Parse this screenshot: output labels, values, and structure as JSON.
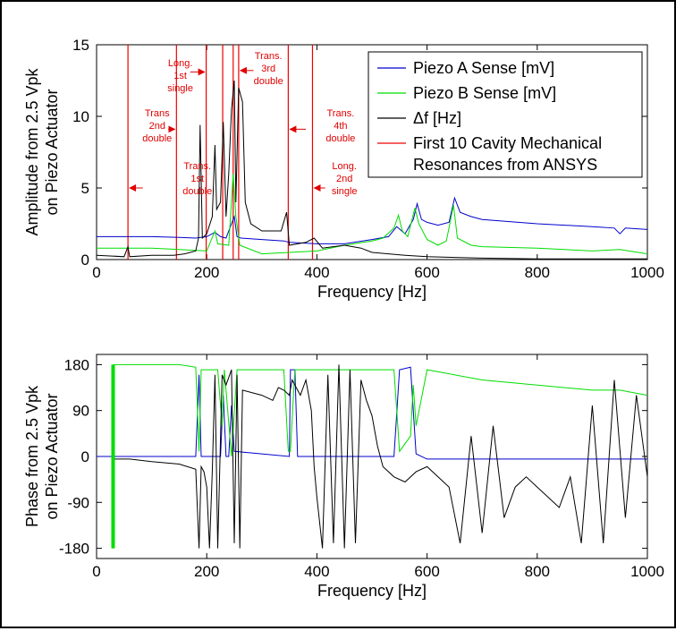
{
  "chart_data": [
    {
      "type": "line",
      "xlabel": "Frequency [Hz]",
      "ylabel_lines": [
        "Amplitude from 2.5 Vpk",
        "on Piezo Actuator"
      ],
      "xlim": [
        0,
        1000
      ],
      "ylim": [
        0,
        15
      ],
      "x_ticks": [
        "0",
        "200",
        "400",
        "600",
        "800",
        "1000"
      ],
      "y_ticks": [
        "0",
        "5",
        "10",
        "15"
      ],
      "grid": false,
      "legend_position": "top-right",
      "colors": {
        "piezo_a": "#0000cc",
        "piezo_b": "#00dd00",
        "delta_f": "#000000",
        "ansys": "#ee0000"
      },
      "legend": {
        "piezo_a": "Piezo A Sense [mV]",
        "piezo_b": "Piezo B Sense [mV]",
        "delta_f": "Δf [Hz]",
        "ansys_line1": "First 10 Cavity Mechanical",
        "ansys_line2": "Resonances from ANSYS"
      },
      "resonance_lines_hz": [
        57,
        145,
        199,
        229,
        248,
        258,
        348,
        392
      ],
      "annotations": [
        {
          "lines": [
            "Long.",
            "1st",
            "single"
          ],
          "x": 152,
          "y": 13.5,
          "arrow": "right",
          "arrow_from": 170,
          "arrow_to": 199,
          "arrow_y": 13.1
        },
        {
          "lines": [
            "Trans",
            "2nd",
            "double"
          ],
          "x": 110,
          "y": 10.0,
          "arrow": "right",
          "arrow_from": 130,
          "arrow_to": 145,
          "arrow_y": 9.1
        },
        {
          "lines": [
            "Trans.",
            "1st",
            "double"
          ],
          "x": 183,
          "y": 6.3,
          "arrow": "left",
          "arrow_from": 84,
          "arrow_to": 57,
          "arrow_y": 5.0
        },
        {
          "lines": [
            "Trans.",
            "3rd",
            "double"
          ],
          "x": 312,
          "y": 14.0,
          "arrow": "left",
          "arrow_from": 285,
          "arrow_to": 258,
          "arrow_y": 13.2
        },
        {
          "lines": [
            "Trans.",
            "4th",
            "double"
          ],
          "x": 443,
          "y": 10.0,
          "arrow": "left",
          "arrow_from": 380,
          "arrow_to": 348,
          "arrow_y": 9.1
        },
        {
          "lines": [
            "Long.",
            "2nd",
            "single"
          ],
          "x": 450,
          "y": 6.3,
          "arrow": "left",
          "arrow_from": 415,
          "arrow_to": 392,
          "arrow_y": 5.0
        }
      ],
      "series": [
        {
          "key": "piezo_a",
          "name": "Piezo A Sense [mV]",
          "color": "#0000cc",
          "points": [
            [
              0,
              1.6
            ],
            [
              50,
              1.6
            ],
            [
              100,
              1.6
            ],
            [
              150,
              1.55
            ],
            [
              180,
              1.5
            ],
            [
              200,
              1.6
            ],
            [
              215,
              1.9
            ],
            [
              225,
              1.6
            ],
            [
              235,
              1.5
            ],
            [
              245,
              2.5
            ],
            [
              250,
              3.0
            ],
            [
              255,
              1.6
            ],
            [
              262,
              1.5
            ],
            [
              300,
              1.4
            ],
            [
              340,
              1.3
            ],
            [
              350,
              1.2
            ],
            [
              400,
              1.1
            ],
            [
              450,
              1.1
            ],
            [
              500,
              1.4
            ],
            [
              530,
              1.6
            ],
            [
              545,
              2.3
            ],
            [
              560,
              1.8
            ],
            [
              575,
              2.8
            ],
            [
              582,
              3.9
            ],
            [
              590,
              2.8
            ],
            [
              600,
              2.6
            ],
            [
              620,
              2.4
            ],
            [
              640,
              2.6
            ],
            [
              650,
              4.3
            ],
            [
              660,
              3.3
            ],
            [
              680,
              3.0
            ],
            [
              700,
              2.8
            ],
            [
              800,
              2.5
            ],
            [
              900,
              2.3
            ],
            [
              940,
              2.2
            ],
            [
              950,
              1.8
            ],
            [
              960,
              2.2
            ],
            [
              1000,
              2.1
            ]
          ]
        },
        {
          "key": "piezo_b",
          "name": "Piezo B Sense [mV]",
          "color": "#00dd00",
          "points": [
            [
              0,
              0.8
            ],
            [
              50,
              0.8
            ],
            [
              100,
              0.8
            ],
            [
              150,
              0.7
            ],
            [
              200,
              0.6
            ],
            [
              215,
              2.0
            ],
            [
              220,
              1.1
            ],
            [
              240,
              1.0
            ],
            [
              248,
              6.0
            ],
            [
              253,
              3.0
            ],
            [
              260,
              1.0
            ],
            [
              300,
              0.4
            ],
            [
              350,
              0.5
            ],
            [
              400,
              0.6
            ],
            [
              450,
              1.0
            ],
            [
              500,
              1.3
            ],
            [
              520,
              1.5
            ],
            [
              540,
              2.2
            ],
            [
              548,
              3.1
            ],
            [
              555,
              2.0
            ],
            [
              565,
              1.6
            ],
            [
              578,
              3.6
            ],
            [
              585,
              2.5
            ],
            [
              600,
              1.4
            ],
            [
              620,
              1.0
            ],
            [
              635,
              1.3
            ],
            [
              648,
              3.8
            ],
            [
              655,
              1.5
            ],
            [
              680,
              1.0
            ],
            [
              700,
              0.9
            ],
            [
              800,
              0.8
            ],
            [
              900,
              0.6
            ],
            [
              950,
              0.7
            ],
            [
              1000,
              0.4
            ]
          ]
        },
        {
          "key": "delta_f",
          "name": "Δf [Hz]",
          "color": "#000000",
          "points": [
            [
              0,
              0.3
            ],
            [
              50,
              0.2
            ],
            [
              57,
              0.9
            ],
            [
              60,
              0.2
            ],
            [
              100,
              0.3
            ],
            [
              140,
              0.3
            ],
            [
              160,
              0.4
            ],
            [
              180,
              0.6
            ],
            [
              185,
              1.5
            ],
            [
              188,
              9.4
            ],
            [
              192,
              1.5
            ],
            [
              200,
              1.8
            ],
            [
              210,
              3.0
            ],
            [
              215,
              8.0
            ],
            [
              218,
              3.5
            ],
            [
              225,
              4.0
            ],
            [
              230,
              9.6
            ],
            [
              235,
              3.0
            ],
            [
              240,
              6.0
            ],
            [
              245,
              10.5
            ],
            [
              250,
              12.5
            ],
            [
              253,
              4.0
            ],
            [
              258,
              12.0
            ],
            [
              265,
              11.0
            ],
            [
              270,
              4.0
            ],
            [
              280,
              2.5
            ],
            [
              300,
              2.0
            ],
            [
              320,
              2.0
            ],
            [
              335,
              2.0
            ],
            [
              345,
              3.3
            ],
            [
              350,
              1.0
            ],
            [
              380,
              1.2
            ],
            [
              395,
              1.5
            ],
            [
              410,
              0.8
            ],
            [
              450,
              1.0
            ],
            [
              480,
              0.8
            ],
            [
              500,
              0.5
            ],
            [
              560,
              0.3
            ],
            [
              600,
              0.2
            ],
            [
              700,
              0.1
            ],
            [
              800,
              0.05
            ],
            [
              900,
              0.05
            ],
            [
              1000,
              0.05
            ]
          ]
        }
      ]
    },
    {
      "type": "line",
      "xlabel": "Frequency [Hz]",
      "ylabel_lines": [
        "Phase from 2.5 Vpk",
        "on Piezo Actuator"
      ],
      "xlim": [
        0,
        1000
      ],
      "ylim": [
        -200,
        200
      ],
      "x_ticks": [
        "0",
        "200",
        "400",
        "600",
        "800",
        "1000"
      ],
      "y_ticks": [
        "-180",
        "-90",
        "0",
        "90",
        "180"
      ],
      "y_tick_values": [
        -180,
        -90,
        0,
        90,
        180
      ],
      "grid": false,
      "series": [
        {
          "key": "piezo_a",
          "name": "Piezo A Sense [mV]",
          "color": "#0000cc",
          "points": [
            [
              0,
              0
            ],
            [
              100,
              0
            ],
            [
              180,
              0
            ],
            [
              186,
              160
            ],
            [
              190,
              0
            ],
            [
              225,
              0
            ],
            [
              230,
              120
            ],
            [
              235,
              0
            ],
            [
              240,
              0
            ],
            [
              245,
              100
            ],
            [
              250,
              10
            ],
            [
              300,
              5
            ],
            [
              350,
              0
            ],
            [
              352,
              170
            ],
            [
              360,
              170
            ],
            [
              365,
              0
            ],
            [
              400,
              0
            ],
            [
              540,
              0
            ],
            [
              550,
              170
            ],
            [
              570,
              175
            ],
            [
              580,
              5
            ],
            [
              600,
              -5
            ],
            [
              700,
              -5
            ],
            [
              800,
              -5
            ],
            [
              900,
              -5
            ],
            [
              1000,
              -5
            ]
          ]
        },
        {
          "key": "piezo_b",
          "name": "Piezo B Sense [mV]",
          "color": "#00dd00",
          "points": [
            [
              30,
              -180
            ],
            [
              31,
              180
            ],
            [
              100,
              180
            ],
            [
              150,
              180
            ],
            [
              180,
              175
            ],
            [
              186,
              10
            ],
            [
              190,
              170
            ],
            [
              220,
              170
            ],
            [
              228,
              60
            ],
            [
              232,
              170
            ],
            [
              245,
              0
            ],
            [
              255,
              170
            ],
            [
              340,
              170
            ],
            [
              348,
              10
            ],
            [
              352,
              10
            ],
            [
              360,
              170
            ],
            [
              540,
              170
            ],
            [
              550,
              10
            ],
            [
              570,
              40
            ],
            [
              575,
              140
            ],
            [
              580,
              60
            ],
            [
              600,
              170
            ],
            [
              700,
              150
            ],
            [
              800,
              140
            ],
            [
              900,
              130
            ],
            [
              950,
              130
            ],
            [
              1000,
              120
            ]
          ]
        },
        {
          "key": "delta_f",
          "name": "Δf [Hz]",
          "color": "#000000",
          "points": [
            [
              30,
              -5
            ],
            [
              60,
              -5
            ],
            [
              100,
              -10
            ],
            [
              150,
              -15
            ],
            [
              180,
              -25
            ],
            [
              186,
              -180
            ],
            [
              190,
              -20
            ],
            [
              195,
              -30
            ],
            [
              200,
              -60
            ],
            [
              205,
              -180
            ],
            [
              210,
              -30
            ],
            [
              215,
              160
            ],
            [
              220,
              -180
            ],
            [
              228,
              160
            ],
            [
              235,
              140
            ],
            [
              245,
              170
            ],
            [
              250,
              -170
            ],
            [
              255,
              160
            ],
            [
              260,
              -180
            ],
            [
              265,
              130
            ],
            [
              300,
              120
            ],
            [
              320,
              110
            ],
            [
              330,
              135
            ],
            [
              340,
              130
            ],
            [
              350,
              120
            ],
            [
              355,
              150
            ],
            [
              360,
              140
            ],
            [
              370,
              120
            ],
            [
              380,
              150
            ],
            [
              390,
              90
            ],
            [
              395,
              -20
            ],
            [
              400,
              -80
            ],
            [
              410,
              -180
            ],
            [
              420,
              160
            ],
            [
              430,
              -170
            ],
            [
              440,
              180
            ],
            [
              450,
              -180
            ],
            [
              460,
              170
            ],
            [
              470,
              -170
            ],
            [
              480,
              150
            ],
            [
              490,
              110
            ],
            [
              500,
              80
            ],
            [
              510,
              20
            ],
            [
              520,
              -20
            ],
            [
              540,
              -40
            ],
            [
              560,
              -50
            ],
            [
              580,
              -30
            ],
            [
              600,
              -20
            ],
            [
              620,
              -40
            ],
            [
              640,
              -60
            ],
            [
              660,
              -170
            ],
            [
              680,
              40
            ],
            [
              700,
              -150
            ],
            [
              720,
              60
            ],
            [
              740,
              -120
            ],
            [
              760,
              -60
            ],
            [
              780,
              -40
            ],
            [
              800,
              -60
            ],
            [
              820,
              -80
            ],
            [
              840,
              -100
            ],
            [
              860,
              -40
            ],
            [
              880,
              -170
            ],
            [
              900,
              100
            ],
            [
              920,
              -170
            ],
            [
              940,
              150
            ],
            [
              960,
              -120
            ],
            [
              980,
              120
            ],
            [
              1000,
              -40
            ]
          ]
        }
      ]
    }
  ]
}
